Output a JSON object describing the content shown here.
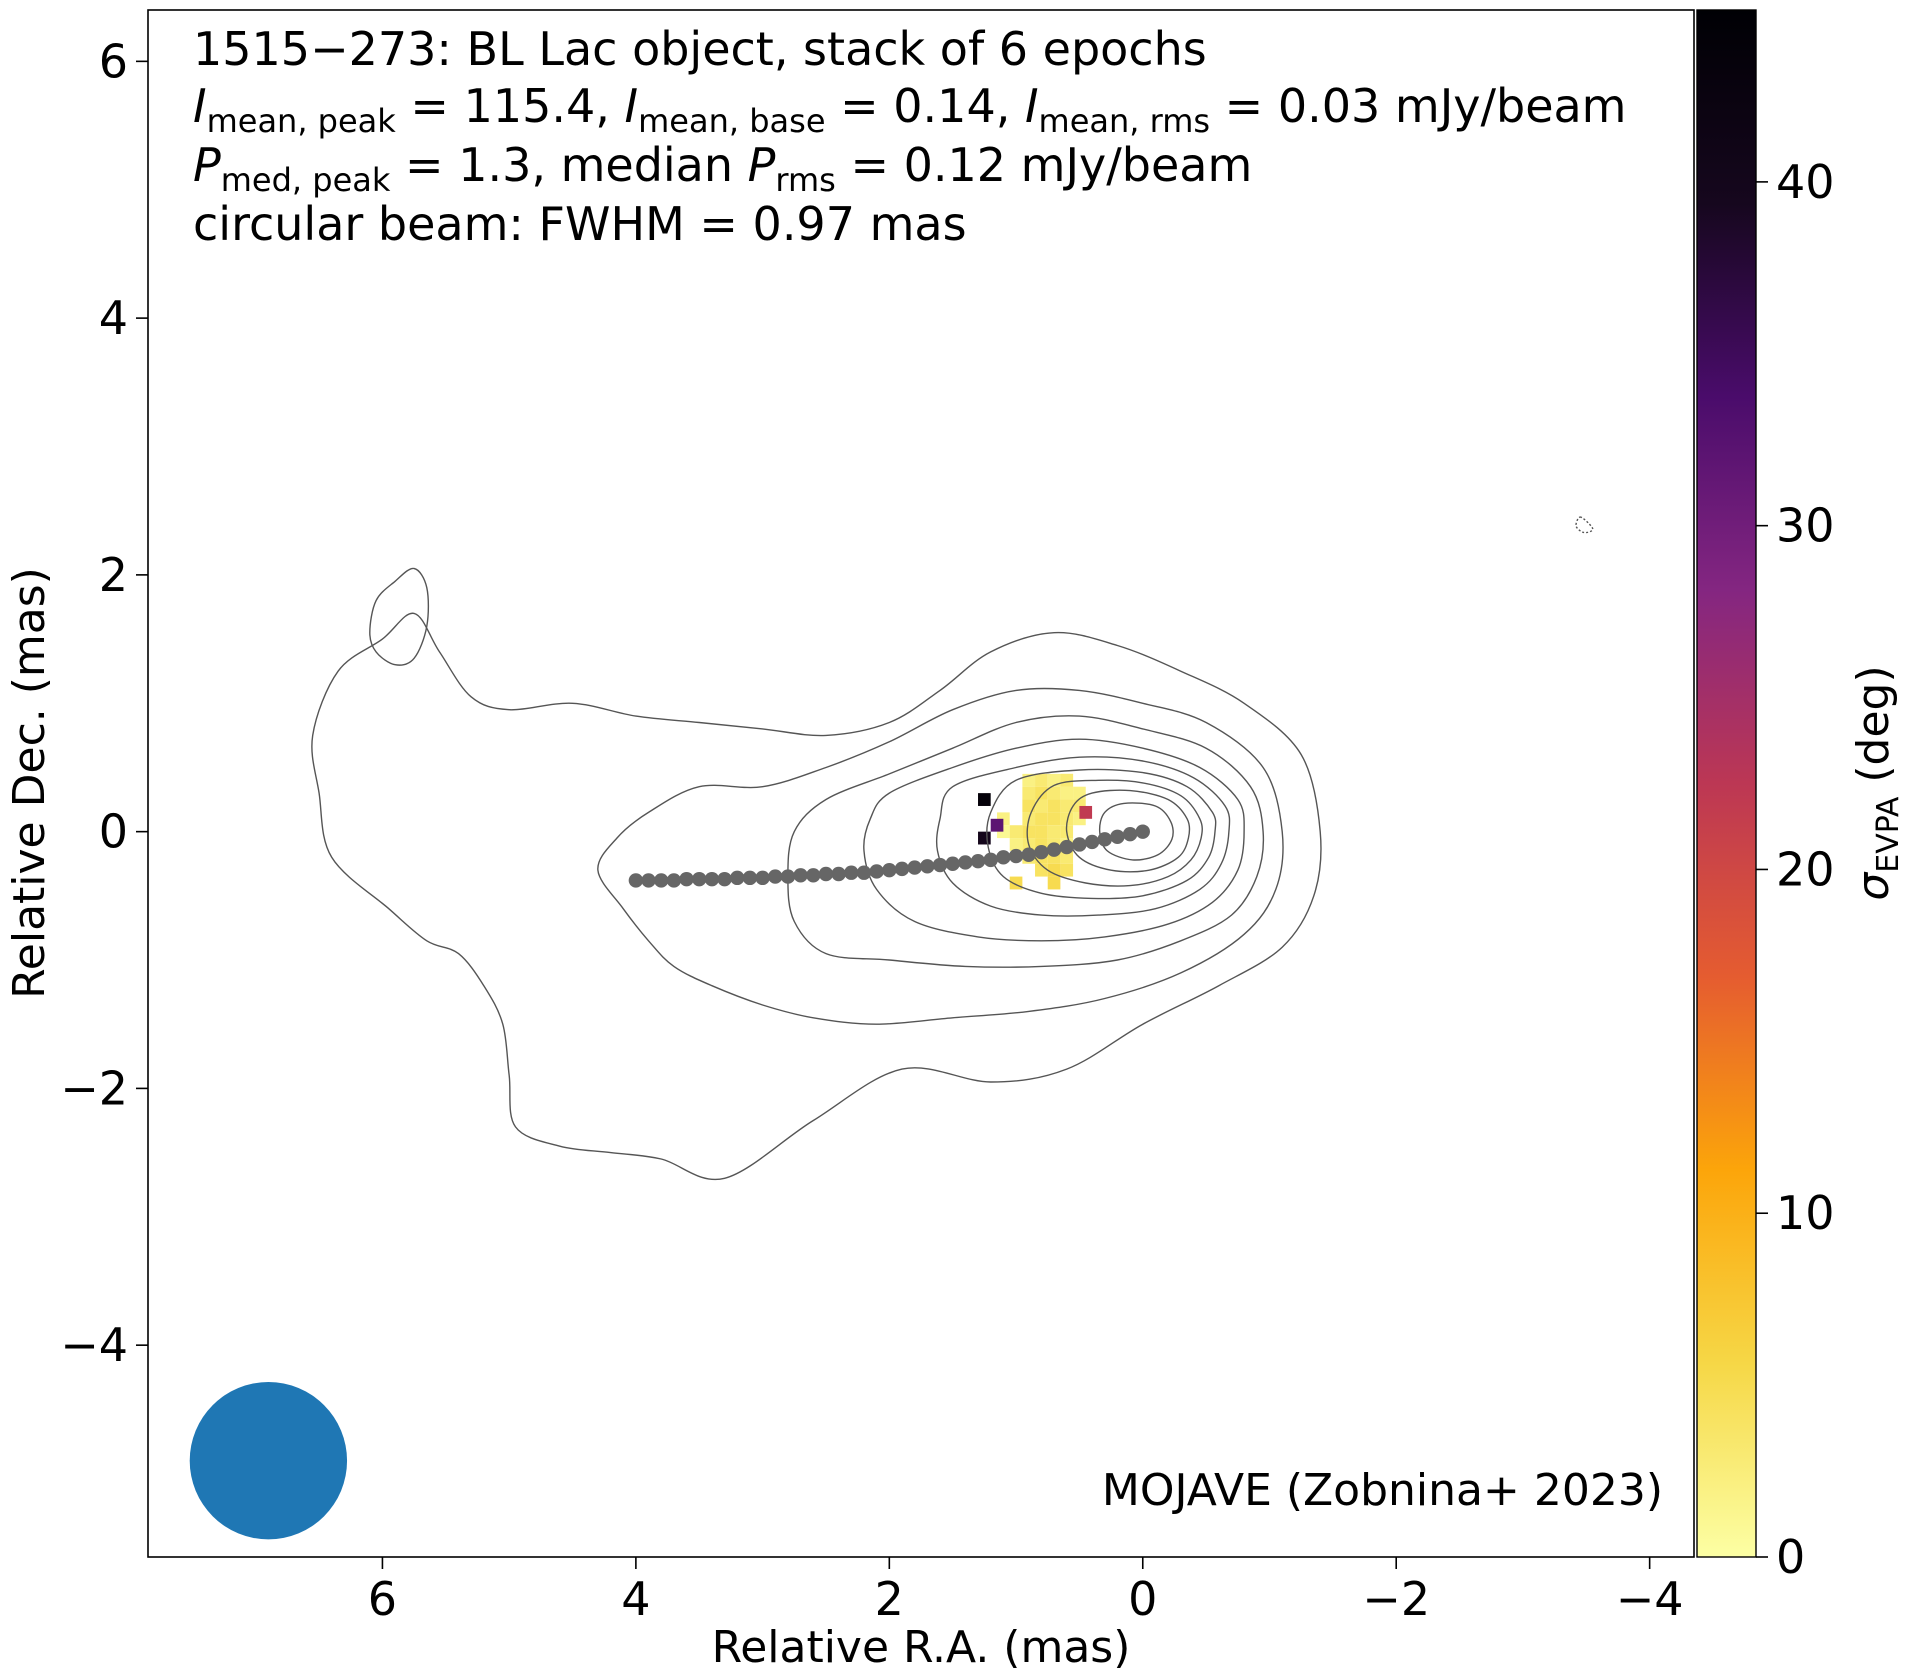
{
  "chart_data": {
    "type": "contour-map",
    "title_lines": [
      {
        "segments": [
          {
            "t": "1515−273: BL Lac object, stack of 6 epochs"
          }
        ]
      },
      {
        "segments": [
          {
            "t": "I",
            "italic": true
          },
          {
            "t": "mean, peak",
            "sub": true
          },
          {
            "t": " = 115.4, "
          },
          {
            "t": "I",
            "italic": true
          },
          {
            "t": "mean, base",
            "sub": true
          },
          {
            "t": " = 0.14, "
          },
          {
            "t": "I",
            "italic": true
          },
          {
            "t": "mean, rms",
            "sub": true
          },
          {
            "t": " = 0.03 mJy/beam"
          }
        ]
      },
      {
        "segments": [
          {
            "t": "P",
            "italic": true
          },
          {
            "t": "med, peak",
            "sub": true
          },
          {
            "t": " = 1.3, median "
          },
          {
            "t": "P",
            "italic": true
          },
          {
            "t": "rms",
            "sub": true
          },
          {
            "t": " = 0.12 mJy/beam"
          }
        ]
      },
      {
        "segments": [
          {
            "t": "circular beam: FWHM = 0.97 mas"
          }
        ]
      }
    ],
    "credit": "MOJAVE (Zobnina+ 2023)",
    "xlabel": "Relative R.A. (mas)",
    "ylabel": "Relative Dec. (mas)",
    "xlim": [
      7.85,
      -4.35
    ],
    "ylim": [
      -5.65,
      6.4
    ],
    "x_ticks": [
      {
        "v": 6,
        "label": "6"
      },
      {
        "v": 4,
        "label": "4"
      },
      {
        "v": 2,
        "label": "2"
      },
      {
        "v": 0,
        "label": "0"
      },
      {
        "v": -2,
        "label": "−2"
      },
      {
        "v": -4,
        "label": "−4"
      }
    ],
    "y_ticks": [
      {
        "v": -4,
        "label": "−4"
      },
      {
        "v": -2,
        "label": "−2"
      },
      {
        "v": 0,
        "label": "0"
      },
      {
        "v": 2,
        "label": "2"
      },
      {
        "v": 4,
        "label": "4"
      },
      {
        "v": 6,
        "label": "6"
      }
    ],
    "colorbar": {
      "label_symbol": "σ",
      "label_sub": "EVPA",
      "label_unit": " (deg)",
      "range": [
        0,
        45
      ],
      "ticks": [
        {
          "v": 0,
          "label": "0"
        },
        {
          "v": 10,
          "label": "10"
        },
        {
          "v": 20,
          "label": "20"
        },
        {
          "v": 30,
          "label": "30"
        },
        {
          "v": 40,
          "label": "40"
        }
      ],
      "colormap": "inferno_r",
      "stops": [
        "#fcffa4",
        "#f6d746",
        "#fca50a",
        "#e55c30",
        "#bc3754",
        "#842681",
        "#4a0c6b",
        "#16071e",
        "#000004"
      ]
    },
    "beam": {
      "x": 6.9,
      "y": -4.9,
      "fwhm": 0.97,
      "color": "#1f77b4"
    },
    "ridgeline": {
      "color": "#666666",
      "x": [
        0.0,
        0.1,
        0.2,
        0.3,
        0.4,
        0.5,
        0.6,
        0.7,
        0.8,
        0.9,
        1.0,
        1.1,
        1.2,
        1.3,
        1.4,
        1.5,
        1.6,
        1.7,
        1.8,
        1.9,
        2.0,
        2.1,
        2.2,
        2.3,
        2.4,
        2.5,
        2.6,
        2.7,
        2.8,
        2.9,
        3.0,
        3.1,
        3.2,
        3.3,
        3.4,
        3.5,
        3.6,
        3.7,
        3.8,
        3.9,
        4.0
      ],
      "y": [
        0.0,
        -0.02,
        -0.04,
        -0.06,
        -0.08,
        -0.1,
        -0.12,
        -0.14,
        -0.16,
        -0.18,
        -0.19,
        -0.2,
        -0.22,
        -0.23,
        -0.24,
        -0.25,
        -0.26,
        -0.27,
        -0.28,
        -0.29,
        -0.3,
        -0.31,
        -0.32,
        -0.32,
        -0.33,
        -0.33,
        -0.34,
        -0.34,
        -0.35,
        -0.35,
        -0.36,
        -0.36,
        -0.36,
        -0.37,
        -0.37,
        -0.37,
        -0.37,
        -0.38,
        -0.38,
        -0.38,
        -0.38
      ]
    },
    "contours": {
      "color": "#555555",
      "solid": [
        [
          [
            3.0,
            0.8
          ],
          [
            2.5,
            0.75
          ],
          [
            2.0,
            0.85
          ],
          [
            1.6,
            1.1
          ],
          [
            1.2,
            1.4
          ],
          [
            0.7,
            1.55
          ],
          [
            0.2,
            1.45
          ],
          [
            -0.3,
            1.25
          ],
          [
            -0.8,
            1.0
          ],
          [
            -1.25,
            0.6
          ],
          [
            -1.4,
            0.0
          ],
          [
            -1.35,
            -0.5
          ],
          [
            -1.1,
            -0.9
          ],
          [
            -0.6,
            -1.2
          ],
          [
            0.0,
            -1.5
          ],
          [
            0.6,
            -1.85
          ],
          [
            1.2,
            -1.95
          ],
          [
            1.9,
            -1.85
          ],
          [
            2.6,
            -2.25
          ],
          [
            3.3,
            -2.7
          ],
          [
            3.8,
            -2.55
          ],
          [
            4.2,
            -2.5
          ],
          [
            4.6,
            -2.45
          ],
          [
            4.95,
            -2.3
          ],
          [
            5.0,
            -1.9
          ],
          [
            5.05,
            -1.5
          ],
          [
            5.2,
            -1.2
          ],
          [
            5.4,
            -0.95
          ],
          [
            5.65,
            -0.85
          ],
          [
            5.95,
            -0.6
          ],
          [
            6.4,
            -0.2
          ],
          [
            6.5,
            0.3
          ],
          [
            6.55,
            0.75
          ],
          [
            6.35,
            1.25
          ],
          [
            6.0,
            1.5
          ],
          [
            5.75,
            1.7
          ],
          [
            5.55,
            1.4
          ],
          [
            5.3,
            1.05
          ],
          [
            5.0,
            0.95
          ],
          [
            4.5,
            1.0
          ],
          [
            4.0,
            0.9
          ],
          [
            3.5,
            0.85
          ]
        ],
        [
          [
            5.75,
            2.05
          ],
          [
            5.9,
            1.95
          ],
          [
            6.05,
            1.8
          ],
          [
            6.1,
            1.55
          ],
          [
            6.05,
            1.4
          ],
          [
            5.9,
            1.3
          ],
          [
            5.75,
            1.35
          ],
          [
            5.65,
            1.6
          ],
          [
            5.65,
            1.9
          ]
        ],
        [
          [
            3.5,
            0.35
          ],
          [
            3.0,
            0.35
          ],
          [
            2.5,
            0.5
          ],
          [
            2.0,
            0.7
          ],
          [
            1.5,
            0.95
          ],
          [
            1.0,
            1.1
          ],
          [
            0.5,
            1.1
          ],
          [
            0.0,
            1.0
          ],
          [
            -0.5,
            0.85
          ],
          [
            -0.95,
            0.5
          ],
          [
            -1.1,
            0.0
          ],
          [
            -1.05,
            -0.45
          ],
          [
            -0.8,
            -0.8
          ],
          [
            -0.3,
            -1.1
          ],
          [
            0.3,
            -1.3
          ],
          [
            0.9,
            -1.4
          ],
          [
            1.5,
            -1.45
          ],
          [
            2.1,
            -1.5
          ],
          [
            2.6,
            -1.45
          ],
          [
            3.0,
            -1.35
          ],
          [
            3.4,
            -1.2
          ],
          [
            3.7,
            -1.05
          ],
          [
            3.9,
            -0.85
          ],
          [
            4.1,
            -0.6
          ],
          [
            4.3,
            -0.3
          ],
          [
            4.15,
            -0.05
          ],
          [
            3.9,
            0.15
          ]
        ],
        [
          [
            2.5,
            0.25
          ],
          [
            2.0,
            0.45
          ],
          [
            1.5,
            0.65
          ],
          [
            1.0,
            0.85
          ],
          [
            0.5,
            0.9
          ],
          [
            0.0,
            0.8
          ],
          [
            -0.5,
            0.65
          ],
          [
            -0.85,
            0.35
          ],
          [
            -0.95,
            0.0
          ],
          [
            -0.9,
            -0.35
          ],
          [
            -0.7,
            -0.65
          ],
          [
            -0.3,
            -0.85
          ],
          [
            0.2,
            -1.0
          ],
          [
            0.8,
            -1.05
          ],
          [
            1.4,
            -1.05
          ],
          [
            2.0,
            -1.0
          ],
          [
            2.5,
            -0.95
          ],
          [
            2.75,
            -0.7
          ],
          [
            2.8,
            -0.35
          ],
          [
            2.75,
            0.0
          ]
        ],
        [
          [
            2.0,
            0.3
          ],
          [
            1.5,
            0.5
          ],
          [
            1.0,
            0.65
          ],
          [
            0.5,
            0.72
          ],
          [
            0.0,
            0.65
          ],
          [
            -0.45,
            0.5
          ],
          [
            -0.75,
            0.25
          ],
          [
            -0.8,
            0.0
          ],
          [
            -0.75,
            -0.3
          ],
          [
            -0.55,
            -0.55
          ],
          [
            -0.2,
            -0.72
          ],
          [
            0.3,
            -0.82
          ],
          [
            0.8,
            -0.85
          ],
          [
            1.3,
            -0.82
          ],
          [
            1.8,
            -0.7
          ],
          [
            2.1,
            -0.45
          ],
          [
            2.2,
            -0.15
          ],
          [
            2.15,
            0.1
          ]
        ],
        [
          [
            1.5,
            0.35
          ],
          [
            1.0,
            0.5
          ],
          [
            0.5,
            0.58
          ],
          [
            0.0,
            0.55
          ],
          [
            -0.4,
            0.42
          ],
          [
            -0.65,
            0.2
          ],
          [
            -0.68,
            0.0
          ],
          [
            -0.62,
            -0.25
          ],
          [
            -0.45,
            -0.45
          ],
          [
            -0.1,
            -0.6
          ],
          [
            0.35,
            -0.65
          ],
          [
            0.8,
            -0.65
          ],
          [
            1.2,
            -0.58
          ],
          [
            1.5,
            -0.4
          ],
          [
            1.62,
            -0.15
          ],
          [
            1.6,
            0.1
          ]
        ],
        [
          [
            1.0,
            0.4
          ],
          [
            0.5,
            0.48
          ],
          [
            0.0,
            0.46
          ],
          [
            -0.35,
            0.35
          ],
          [
            -0.55,
            0.15
          ],
          [
            -0.57,
            0.0
          ],
          [
            -0.52,
            -0.2
          ],
          [
            -0.35,
            -0.38
          ],
          [
            0.0,
            -0.5
          ],
          [
            0.4,
            -0.52
          ],
          [
            0.8,
            -0.48
          ],
          [
            1.1,
            -0.35
          ],
          [
            1.22,
            -0.12
          ],
          [
            1.2,
            0.15
          ]
        ],
        [
          [
            0.7,
            0.36
          ],
          [
            0.35,
            0.4
          ],
          [
            0.0,
            0.38
          ],
          [
            -0.3,
            0.28
          ],
          [
            -0.45,
            0.1
          ],
          [
            -0.46,
            -0.05
          ],
          [
            -0.38,
            -0.22
          ],
          [
            -0.2,
            -0.35
          ],
          [
            0.1,
            -0.42
          ],
          [
            0.45,
            -0.4
          ],
          [
            0.75,
            -0.3
          ],
          [
            0.9,
            -0.1
          ],
          [
            0.88,
            0.15
          ]
        ],
        [
          [
            0.4,
            0.3
          ],
          [
            0.1,
            0.32
          ],
          [
            -0.2,
            0.25
          ],
          [
            -0.35,
            0.1
          ],
          [
            -0.36,
            -0.05
          ],
          [
            -0.28,
            -0.2
          ],
          [
            -0.05,
            -0.3
          ],
          [
            0.25,
            -0.3
          ],
          [
            0.5,
            -0.2
          ],
          [
            0.6,
            0.0
          ],
          [
            0.55,
            0.2
          ]
        ],
        [
          [
            0.15,
            0.22
          ],
          [
            -0.1,
            0.2
          ],
          [
            -0.22,
            0.08
          ],
          [
            -0.23,
            -0.06
          ],
          [
            -0.12,
            -0.18
          ],
          [
            0.08,
            -0.22
          ],
          [
            0.28,
            -0.15
          ],
          [
            0.34,
            0.0
          ],
          [
            0.3,
            0.15
          ]
        ]
      ],
      "dashed": [
        [
          [
            -3.45,
            2.45
          ],
          [
            -3.52,
            2.4
          ],
          [
            -3.55,
            2.35
          ],
          [
            -3.48,
            2.33
          ],
          [
            -3.42,
            2.38
          ]
        ]
      ]
    },
    "pixels": {
      "size": 0.1,
      "items": [
        {
          "x": 0.9,
          "y": 0.4,
          "v": 2
        },
        {
          "x": 0.8,
          "y": 0.4,
          "v": 3
        },
        {
          "x": 0.7,
          "y": 0.4,
          "v": 2
        },
        {
          "x": 0.6,
          "y": 0.4,
          "v": 3
        },
        {
          "x": 0.9,
          "y": 0.3,
          "v": 3
        },
        {
          "x": 0.8,
          "y": 0.3,
          "v": 4
        },
        {
          "x": 0.7,
          "y": 0.3,
          "v": 3
        },
        {
          "x": 0.6,
          "y": 0.3,
          "v": 2
        },
        {
          "x": 0.5,
          "y": 0.3,
          "v": 2
        },
        {
          "x": 0.9,
          "y": 0.2,
          "v": 4
        },
        {
          "x": 0.8,
          "y": 0.2,
          "v": 3
        },
        {
          "x": 0.7,
          "y": 0.2,
          "v": 4
        },
        {
          "x": 0.6,
          "y": 0.2,
          "v": 3
        },
        {
          "x": 0.5,
          "y": 0.2,
          "v": 3
        },
        {
          "x": 1.1,
          "y": 0.1,
          "v": 2
        },
        {
          "x": 0.9,
          "y": 0.1,
          "v": 3
        },
        {
          "x": 0.8,
          "y": 0.1,
          "v": 4
        },
        {
          "x": 0.7,
          "y": 0.1,
          "v": 4
        },
        {
          "x": 0.6,
          "y": 0.1,
          "v": 3
        },
        {
          "x": 0.5,
          "y": 0.1,
          "v": 2
        },
        {
          "x": 1.1,
          "y": 0.0,
          "v": 1
        },
        {
          "x": 1.0,
          "y": 0.0,
          "v": 3
        },
        {
          "x": 0.9,
          "y": 0.0,
          "v": 4
        },
        {
          "x": 0.8,
          "y": 0.0,
          "v": 4
        },
        {
          "x": 0.7,
          "y": 0.0,
          "v": 3
        },
        {
          "x": 0.6,
          "y": 0.0,
          "v": 3
        },
        {
          "x": 1.0,
          "y": -0.1,
          "v": 2
        },
        {
          "x": 0.9,
          "y": -0.1,
          "v": 3
        },
        {
          "x": 0.8,
          "y": -0.1,
          "v": 4
        },
        {
          "x": 0.7,
          "y": -0.1,
          "v": 3
        },
        {
          "x": 0.6,
          "y": -0.1,
          "v": 2
        },
        {
          "x": 0.9,
          "y": -0.2,
          "v": 3
        },
        {
          "x": 0.8,
          "y": -0.2,
          "v": 4
        },
        {
          "x": 0.7,
          "y": -0.2,
          "v": 4
        },
        {
          "x": 0.6,
          "y": -0.2,
          "v": 3
        },
        {
          "x": 0.8,
          "y": -0.3,
          "v": 4
        },
        {
          "x": 0.7,
          "y": -0.3,
          "v": 5
        },
        {
          "x": 0.6,
          "y": -0.3,
          "v": 4
        },
        {
          "x": 1.0,
          "y": -0.4,
          "v": 5
        },
        {
          "x": 0.7,
          "y": -0.4,
          "v": 5
        },
        {
          "x": 0.6,
          "y": 0.4,
          "v": 3
        },
        {
          "x": 1.25,
          "y": 0.25,
          "v": 44
        },
        {
          "x": 1.15,
          "y": 0.05,
          "v": 32
        },
        {
          "x": 1.25,
          "y": -0.05,
          "v": 40
        },
        {
          "x": 0.45,
          "y": 0.15,
          "v": 22
        }
      ]
    }
  }
}
